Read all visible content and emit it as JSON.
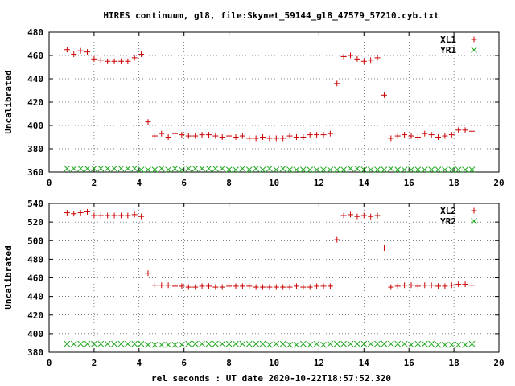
{
  "title": "HIRES continuum, gl8, file:Skynet_59144_gl8_47579_57210.cyb.txt",
  "xlabel": "rel seconds : UT date 2020-10-22T18:57:52.320",
  "chart_data": [
    {
      "type": "scatter",
      "ylabel": "Uncalibrated",
      "xlim": [
        0,
        20
      ],
      "ylim": [
        360,
        480
      ],
      "xticks": [
        0,
        2,
        4,
        6,
        8,
        10,
        12,
        14,
        16,
        18,
        20
      ],
      "yticks": [
        360,
        380,
        400,
        420,
        440,
        460,
        480
      ],
      "grid": true,
      "legend": "top-right",
      "series": [
        {
          "name": "XL1",
          "color": "#cc0000",
          "marker": "plus",
          "x": [
            0.8,
            1.1,
            1.4,
            1.7,
            2.0,
            2.3,
            2.6,
            2.9,
            3.2,
            3.5,
            3.8,
            4.1,
            4.4,
            4.7,
            5.0,
            5.3,
            5.6,
            5.9,
            6.2,
            6.5,
            6.8,
            7.1,
            7.4,
            7.7,
            8.0,
            8.3,
            8.6,
            8.9,
            9.2,
            9.5,
            9.8,
            10.1,
            10.4,
            10.7,
            11.0,
            11.3,
            11.6,
            11.9,
            12.2,
            12.5,
            12.8,
            13.1,
            13.4,
            13.7,
            14.0,
            14.3,
            14.6,
            14.9,
            15.2,
            15.5,
            15.8,
            16.1,
            16.4,
            16.7,
            17.0,
            17.3,
            17.6,
            17.9,
            18.2,
            18.5,
            18.8
          ],
          "y": [
            465,
            461,
            464,
            463,
            457,
            456,
            455,
            455,
            455,
            455,
            458,
            461,
            403,
            391,
            393,
            390,
            393,
            392,
            391,
            391,
            392,
            392,
            391,
            390,
            391,
            390,
            391,
            389,
            389,
            390,
            389,
            389,
            389,
            391,
            390,
            390,
            392,
            392,
            392,
            393,
            436,
            459,
            460,
            457,
            455,
            456,
            458,
            426,
            389,
            391,
            392,
            391,
            390,
            393,
            392,
            390,
            391,
            392,
            396,
            396,
            395
          ]
        },
        {
          "name": "YR1",
          "color": "#22aa22",
          "marker": "cross",
          "x": [
            0.8,
            1.1,
            1.4,
            1.7,
            2.0,
            2.3,
            2.6,
            2.9,
            3.2,
            3.5,
            3.8,
            4.1,
            4.4,
            4.7,
            5.0,
            5.3,
            5.6,
            5.9,
            6.2,
            6.5,
            6.8,
            7.1,
            7.4,
            7.7,
            8.0,
            8.3,
            8.6,
            8.9,
            9.2,
            9.5,
            9.8,
            10.1,
            10.4,
            10.7,
            11.0,
            11.3,
            11.6,
            11.9,
            12.2,
            12.5,
            12.8,
            13.1,
            13.4,
            13.7,
            14.0,
            14.3,
            14.6,
            14.9,
            15.2,
            15.5,
            15.8,
            16.1,
            16.4,
            16.7,
            17.0,
            17.3,
            17.6,
            17.9,
            18.2,
            18.5,
            18.8
          ],
          "y": [
            363,
            363,
            363,
            363,
            363,
            363,
            363,
            363,
            363,
            363,
            363,
            362,
            362,
            362,
            363,
            362,
            363,
            362,
            363,
            363,
            363,
            363,
            363,
            363,
            362,
            362,
            363,
            362,
            363,
            362,
            363,
            362,
            363,
            362,
            362,
            362,
            362,
            362,
            362,
            362,
            362,
            362,
            363,
            363,
            362,
            362,
            362,
            362,
            363,
            362,
            362,
            362,
            362,
            362,
            362,
            362,
            362,
            362,
            362,
            362,
            362
          ]
        }
      ]
    },
    {
      "type": "scatter",
      "ylabel": "Uncalibrated",
      "xlim": [
        0,
        20
      ],
      "ylim": [
        380,
        540
      ],
      "xticks": [
        0,
        2,
        4,
        6,
        8,
        10,
        12,
        14,
        16,
        18,
        20
      ],
      "yticks": [
        380,
        400,
        420,
        440,
        460,
        480,
        500,
        520,
        540
      ],
      "grid": true,
      "legend": "top-right",
      "series": [
        {
          "name": "XL2",
          "color": "#cc0000",
          "marker": "plus",
          "x": [
            0.8,
            1.1,
            1.4,
            1.7,
            2.0,
            2.3,
            2.6,
            2.9,
            3.2,
            3.5,
            3.8,
            4.1,
            4.4,
            4.7,
            5.0,
            5.3,
            5.6,
            5.9,
            6.2,
            6.5,
            6.8,
            7.1,
            7.4,
            7.7,
            8.0,
            8.3,
            8.6,
            8.9,
            9.2,
            9.5,
            9.8,
            10.1,
            10.4,
            10.7,
            11.0,
            11.3,
            11.6,
            11.9,
            12.2,
            12.5,
            12.8,
            13.1,
            13.4,
            13.7,
            14.0,
            14.3,
            14.6,
            14.9,
            15.2,
            15.5,
            15.8,
            16.1,
            16.4,
            16.7,
            17.0,
            17.3,
            17.6,
            17.9,
            18.2,
            18.5,
            18.8
          ],
          "y": [
            530,
            529,
            530,
            531,
            527,
            527,
            527,
            527,
            527,
            527,
            528,
            526,
            465,
            452,
            452,
            452,
            451,
            451,
            450,
            450,
            451,
            451,
            450,
            450,
            451,
            451,
            451,
            451,
            450,
            450,
            450,
            450,
            450,
            450,
            451,
            450,
            450,
            451,
            451,
            451,
            501,
            527,
            528,
            526,
            527,
            526,
            527,
            492,
            450,
            451,
            452,
            452,
            451,
            452,
            452,
            451,
            451,
            452,
            453,
            453,
            452
          ]
        },
        {
          "name": "YR2",
          "color": "#22aa22",
          "marker": "cross",
          "x": [
            0.8,
            1.1,
            1.4,
            1.7,
            2.0,
            2.3,
            2.6,
            2.9,
            3.2,
            3.5,
            3.8,
            4.1,
            4.4,
            4.7,
            5.0,
            5.3,
            5.6,
            5.9,
            6.2,
            6.5,
            6.8,
            7.1,
            7.4,
            7.7,
            8.0,
            8.3,
            8.6,
            8.9,
            9.2,
            9.5,
            9.8,
            10.1,
            10.4,
            10.7,
            11.0,
            11.3,
            11.6,
            11.9,
            12.2,
            12.5,
            12.8,
            13.1,
            13.4,
            13.7,
            14.0,
            14.3,
            14.6,
            14.9,
            15.2,
            15.5,
            15.8,
            16.1,
            16.4,
            16.7,
            17.0,
            17.3,
            17.6,
            17.9,
            18.2,
            18.5,
            18.8
          ],
          "y": [
            389,
            389,
            389,
            389,
            389,
            389,
            389,
            389,
            389,
            389,
            389,
            389,
            388,
            388,
            388,
            388,
            388,
            388,
            389,
            389,
            389,
            389,
            389,
            389,
            389,
            389,
            389,
            389,
            389,
            389,
            388,
            389,
            389,
            388,
            388,
            389,
            388,
            389,
            388,
            389,
            389,
            389,
            389,
            389,
            389,
            389,
            389,
            389,
            389,
            389,
            389,
            388,
            389,
            389,
            389,
            388,
            388,
            388,
            388,
            388,
            389
          ]
        }
      ]
    }
  ]
}
